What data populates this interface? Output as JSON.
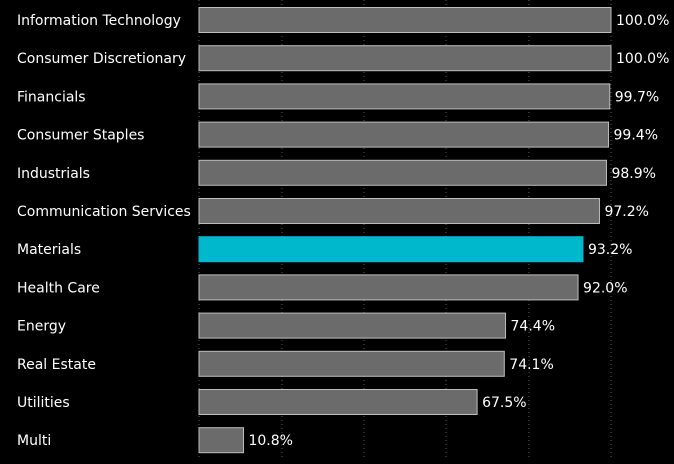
{
  "chart_data": {
    "type": "bar",
    "orientation": "horizontal",
    "categories": [
      "Information Technology",
      "Consumer Discretionary",
      "Financials",
      "Consumer Staples",
      "Industrials",
      "Communication Services",
      "Materials",
      "Health Care",
      "Energy",
      "Real Estate",
      "Utilities",
      "Multi"
    ],
    "values": [
      100.0,
      100.0,
      99.7,
      99.4,
      98.9,
      97.2,
      93.2,
      92.0,
      74.4,
      74.1,
      67.5,
      10.8
    ],
    "value_labels": [
      "100.0%",
      "100.0%",
      "99.7%",
      "99.4%",
      "98.9%",
      "97.2%",
      "93.2%",
      "92.0%",
      "74.4%",
      "74.1%",
      "67.5%",
      "10.8%"
    ],
    "highlight_category": "Materials",
    "xlim": [
      0,
      100
    ],
    "grid": "vertical dotted",
    "title": "",
    "xlabel": "",
    "ylabel": "",
    "colors": {
      "background": "#000000",
      "bar": "#6b6b6b",
      "bar_border": "#bdbdbd",
      "highlight": "#00b8cc",
      "text": "#ffffff",
      "grid": "#5a5a5a"
    }
  }
}
